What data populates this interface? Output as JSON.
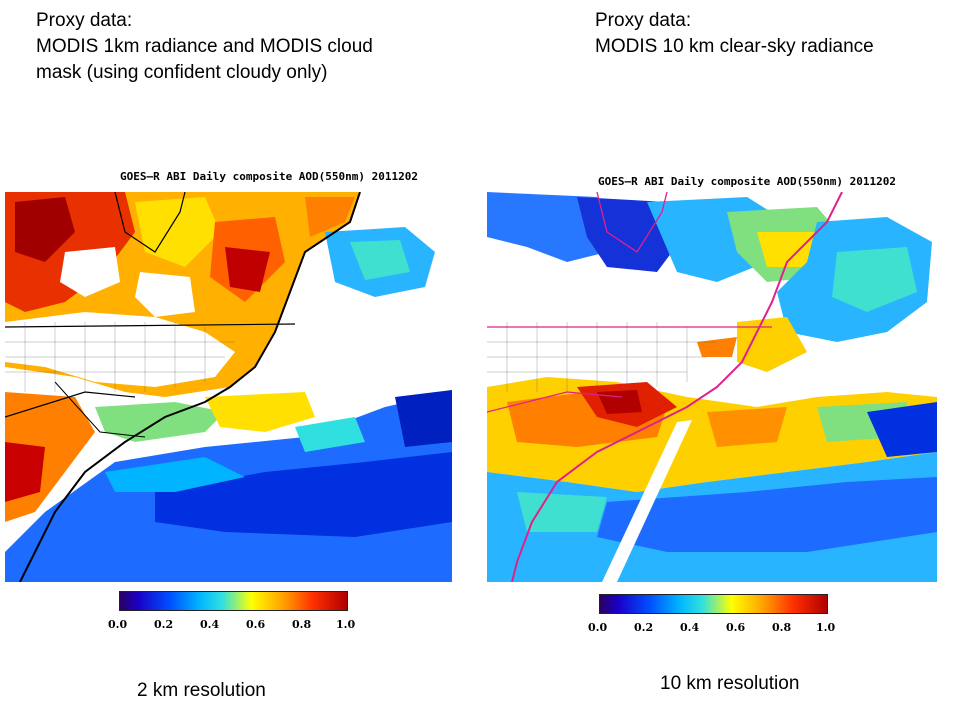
{
  "left_panel": {
    "caption_lines": [
      "Proxy data:",
      "MODIS 1km radiance and MODIS cloud",
      "mask (using confident cloudy only)"
    ],
    "map_title": "GOES–R ABI Daily composite AOD(550nm)  2011202",
    "colorbar_ticks": [
      "0.0",
      "0.2",
      "0.4",
      "0.6",
      "0.8",
      "1.0"
    ],
    "resolution": "2 km resolution"
  },
  "right_panel": {
    "caption_lines": [
      "Proxy data:",
      "MODIS 10 km clear-sky radiance"
    ],
    "map_title": "GOES–R ABI Daily composite AOD(550nm)  2011202",
    "colorbar_ticks": [
      "0.0",
      "0.2",
      "0.4",
      "0.6",
      "0.8",
      "1.0"
    ],
    "resolution": "10 km resolution"
  },
  "colors": {
    "very_low": "#1a00c8",
    "low": "#0050ff",
    "mid_low": "#00b4ff",
    "mid": "#30e0e0",
    "mid_high": "#ffff00",
    "high": "#ffa000",
    "very_high": "#ff3000",
    "max": "#b00000",
    "border_right": "#e0208c"
  }
}
